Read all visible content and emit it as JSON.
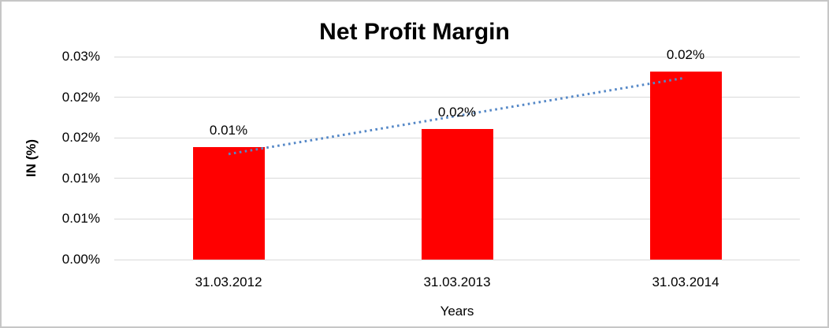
{
  "chart_data": {
    "type": "bar",
    "title": "Net Profit Margin",
    "xlabel": "Years",
    "ylabel": "IN (%)",
    "categories": [
      "31.03.2012",
      "31.03.2013",
      "31.03.2014"
    ],
    "values": [
      0.0139,
      0.0161,
      0.0232
    ],
    "data_labels": [
      "0.01%",
      "0.02%",
      "0.02%"
    ],
    "y_ticks_top_to_bottom": [
      "0.03%",
      "0.02%",
      "0.02%",
      "0.01%",
      "0.01%",
      "0.00%"
    ],
    "ylim": [
      0,
      0.025
    ],
    "grid": true,
    "legend_position": "none",
    "bar_color": "#ff0000",
    "gridline_color": "#d9d9d9",
    "trendline": {
      "type": "linear",
      "style": "dotted",
      "color": "#5588c7",
      "start_value": 0.013,
      "end_value": 0.0224
    }
  }
}
